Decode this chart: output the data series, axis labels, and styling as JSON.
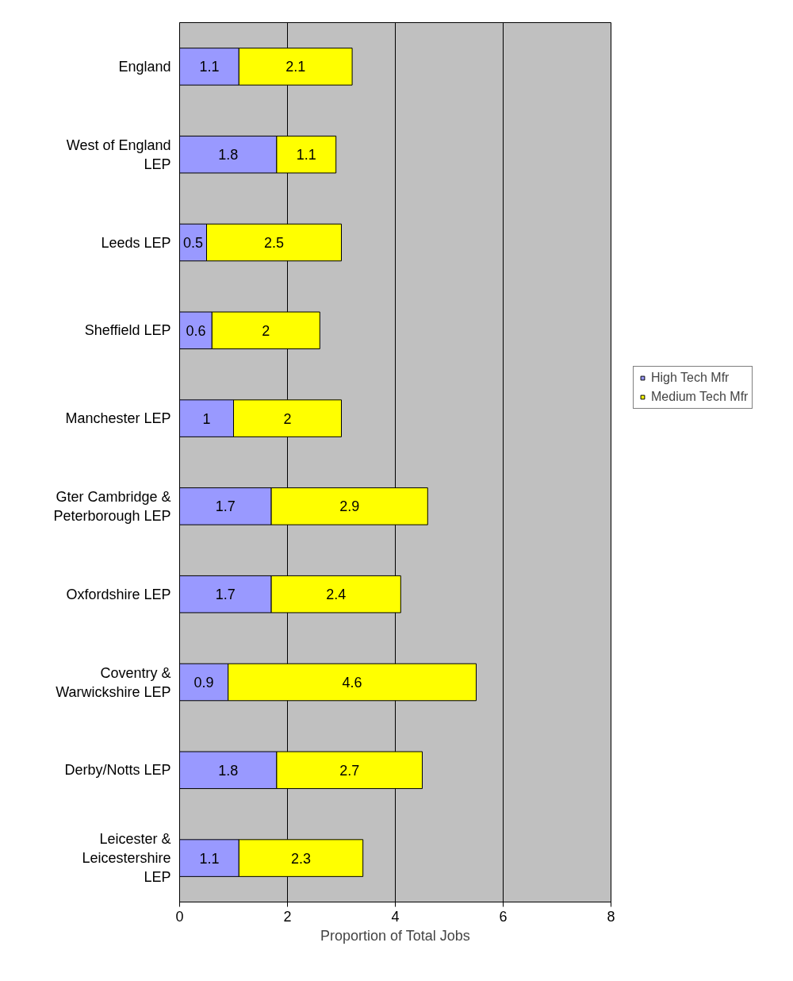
{
  "chart_data": {
    "type": "bar",
    "orientation": "horizontal",
    "stacked": true,
    "categories": [
      "England",
      "West of England\nLEP",
      "Leeds LEP",
      "Sheffield LEP",
      "Manchester LEP",
      "Gter Cambridge &\nPeterborough LEP",
      "Oxfordshire LEP",
      "Coventry &\nWarwickshire LEP",
      "Derby/Notts LEP",
      "Leicester &\nLeicestershire\nLEP"
    ],
    "series": [
      {
        "name": "High Tech Mfr",
        "color": "#9999ff",
        "values": [
          1.1,
          1.8,
          0.5,
          0.6,
          1,
          1.7,
          1.7,
          0.9,
          1.8,
          1.1
        ]
      },
      {
        "name": "Medium Tech Mfr",
        "color": "#ffff00",
        "values": [
          2.1,
          1.1,
          2.5,
          2,
          2,
          2.9,
          2.4,
          4.6,
          2.7,
          2.3
        ]
      }
    ],
    "xlabel": "Proportion of Total Jobs",
    "xlim": [
      0,
      8
    ],
    "xticks": [
      0,
      2,
      4,
      6,
      8
    ],
    "grid": "x",
    "legend": "right",
    "data_labels": true
  }
}
